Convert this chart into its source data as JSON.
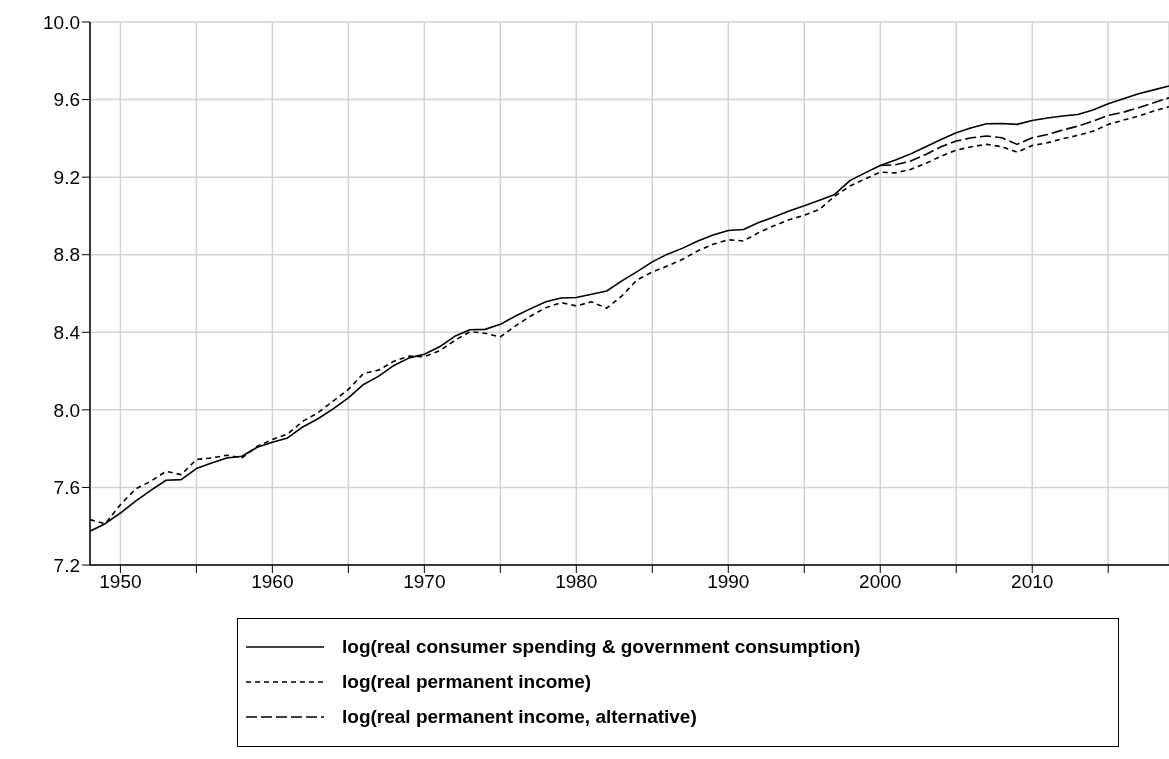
{
  "chart_data": {
    "type": "line",
    "x": [
      1948,
      1949,
      1950,
      1951,
      1952,
      1953,
      1954,
      1955,
      1956,
      1957,
      1958,
      1959,
      1960,
      1961,
      1962,
      1963,
      1964,
      1965,
      1966,
      1967,
      1968,
      1969,
      1970,
      1971,
      1972,
      1973,
      1974,
      1975,
      1976,
      1977,
      1978,
      1979,
      1980,
      1981,
      1982,
      1983,
      1984,
      1985,
      1986,
      1987,
      1988,
      1989,
      1990,
      1991,
      1992,
      1993,
      1994,
      1995,
      1996,
      1997,
      1998,
      1999,
      2000,
      2001,
      2002,
      2003,
      2004,
      2005,
      2006,
      2007,
      2008,
      2009,
      2010,
      2011,
      2012,
      2013,
      2014,
      2015,
      2016,
      2017,
      2018,
      2019
    ],
    "series": [
      {
        "name": "log(real consumer spending & government consumption)",
        "color": "#000000",
        "line_style": "solid",
        "values": [
          7.374,
          7.413,
          7.468,
          7.529,
          7.585,
          7.637,
          7.64,
          7.697,
          7.726,
          7.752,
          7.761,
          7.807,
          7.833,
          7.855,
          7.912,
          7.954,
          8.005,
          8.062,
          8.131,
          8.174,
          8.229,
          8.268,
          8.287,
          8.325,
          8.379,
          8.413,
          8.415,
          8.441,
          8.484,
          8.522,
          8.557,
          8.577,
          8.579,
          8.596,
          8.613,
          8.665,
          8.713,
          8.763,
          8.803,
          8.834,
          8.871,
          8.902,
          8.925,
          8.93,
          8.966,
          8.994,
          9.025,
          9.052,
          9.081,
          9.111,
          9.182,
          9.222,
          9.26,
          9.288,
          9.32,
          9.357,
          9.394,
          9.429,
          9.455,
          9.475,
          9.477,
          9.472,
          9.492,
          9.505,
          9.515,
          9.523,
          9.546,
          9.578,
          9.604,
          9.63,
          9.65,
          9.67
        ]
      },
      {
        "name": "log(real permanent income)",
        "color": "#000000",
        "line_style": "dashed",
        "values": [
          7.434,
          7.413,
          7.511,
          7.592,
          7.632,
          7.683,
          7.666,
          7.744,
          7.752,
          7.766,
          7.752,
          7.812,
          7.847,
          7.876,
          7.941,
          7.985,
          8.045,
          8.105,
          8.188,
          8.205,
          8.251,
          8.277,
          8.274,
          8.304,
          8.358,
          8.403,
          8.395,
          8.376,
          8.433,
          8.484,
          8.527,
          8.553,
          8.536,
          8.557,
          8.524,
          8.588,
          8.67,
          8.711,
          8.742,
          8.777,
          8.82,
          8.854,
          8.877,
          8.871,
          8.914,
          8.949,
          8.98,
          9.004,
          9.033,
          9.102,
          9.154,
          9.191,
          9.226,
          9.222,
          9.24,
          9.271,
          9.308,
          9.339,
          9.357,
          9.369,
          9.357,
          9.329,
          9.363,
          9.377,
          9.398,
          9.415,
          9.437,
          9.472,
          9.494,
          9.515,
          9.541,
          9.563
        ]
      },
      {
        "name": "log(real permanent income, alternative)",
        "color": "#000000",
        "line_style": "dashed",
        "values": [
          null,
          null,
          null,
          null,
          null,
          null,
          null,
          null,
          null,
          null,
          null,
          null,
          null,
          null,
          null,
          null,
          null,
          null,
          null,
          null,
          null,
          null,
          null,
          null,
          null,
          null,
          null,
          null,
          null,
          null,
          null,
          null,
          null,
          null,
          null,
          null,
          null,
          null,
          null,
          null,
          null,
          null,
          null,
          null,
          null,
          null,
          null,
          null,
          null,
          null,
          null,
          null,
          9.26,
          9.264,
          9.283,
          9.317,
          9.357,
          9.386,
          9.403,
          9.412,
          9.403,
          9.369,
          9.403,
          9.42,
          9.443,
          9.463,
          9.489,
          9.518,
          9.535,
          9.558,
          9.584,
          9.609
        ]
      }
    ],
    "xlim": [
      1948,
      2019
    ],
    "xticks": [
      {
        "value": 1950,
        "label": "1950"
      },
      {
        "value": 1955,
        "label": null
      },
      {
        "value": 1960,
        "label": "1960"
      },
      {
        "value": 1965,
        "label": null
      },
      {
        "value": 1970,
        "label": "1970"
      },
      {
        "value": 1975,
        "label": null
      },
      {
        "value": 1980,
        "label": "1980"
      },
      {
        "value": 1985,
        "label": null
      },
      {
        "value": 1990,
        "label": "1990"
      },
      {
        "value": 1995,
        "label": null
      },
      {
        "value": 2000,
        "label": "2000"
      },
      {
        "value": 2005,
        "label": null
      },
      {
        "value": 2010,
        "label": "2010"
      },
      {
        "value": 2015,
        "label": null
      }
    ],
    "ylim": [
      7.2,
      10.0
    ],
    "yticks": [
      {
        "value": 7.2,
        "label": "7.2"
      },
      {
        "value": 7.6,
        "label": "7.6"
      },
      {
        "value": 8.0,
        "label": "8.0"
      },
      {
        "value": 8.4,
        "label": "8.4"
      },
      {
        "value": 8.8,
        "label": "8.8"
      },
      {
        "value": 9.2,
        "label": "9.2"
      },
      {
        "value": 9.6,
        "label": "9.6"
      },
      {
        "value": 10.0,
        "label": "10.0"
      }
    ],
    "grid": true,
    "legend": "bottom",
    "marker": "none"
  }
}
